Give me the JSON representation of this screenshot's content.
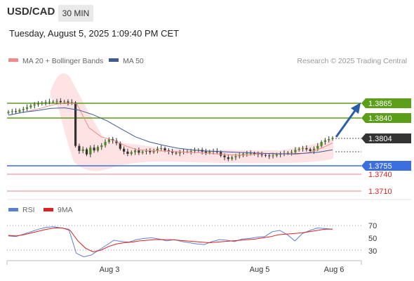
{
  "header": {
    "symbol": "USD/CAD",
    "timeframe": "30 MIN",
    "datetime": "Tuesday, August 5, 2025 1:09:40 PM CET"
  },
  "legend": {
    "ma20_label": "MA 20 + Bollinger Bands",
    "ma50_label": "MA 50",
    "credit": "Research © 2025 Trading Central"
  },
  "colors": {
    "resistance": "#5a9e1a",
    "support": "#3b6fe0",
    "minor_support": "#f08080",
    "current": "#333333",
    "ma20": "#f08a8a",
    "ma50": "#3d5a99",
    "rsi": "#5a7fd6",
    "rsi_ma": "#e02020",
    "arrow": "#2a5fa8"
  },
  "chart_data": [
    {
      "type": "candlestick",
      "title": "USD/CAD 30 MIN",
      "xlabel": "",
      "ylabel": "",
      "x_ticks": [
        "Aug 3",
        "Aug 5",
        "Aug 6"
      ],
      "ylim": [
        1.37,
        1.3895
      ],
      "levels": [
        {
          "label": "1.3865",
          "value": 1.3865,
          "kind": "resistance"
        },
        {
          "label": "1.3840",
          "value": 1.384,
          "kind": "resistance"
        },
        {
          "label": "1.3804",
          "value": 1.3804,
          "kind": "current"
        },
        {
          "label": "1.3755",
          "value": 1.3755,
          "kind": "support"
        },
        {
          "label": "1.3740",
          "value": 1.374,
          "kind": "minor_support"
        },
        {
          "label": "1.3710",
          "value": 1.371,
          "kind": "minor_support"
        }
      ],
      "close_approx": [
        1.385,
        1.3851,
        1.385,
        1.3853,
        1.3855,
        1.3858,
        1.3861,
        1.3863,
        1.3864,
        1.3866,
        1.3867,
        1.3868,
        1.3868,
        1.3869,
        1.3867,
        1.3868,
        1.3866,
        1.3867,
        1.379,
        1.3781,
        1.3784,
        1.3775,
        1.3787,
        1.3782,
        1.3788,
        1.3791,
        1.3797,
        1.3802,
        1.3799,
        1.3795,
        1.3785,
        1.378,
        1.3776,
        1.3779,
        1.3782,
        1.3778,
        1.378,
        1.3781,
        1.3779,
        1.3782,
        1.3785,
        1.3786,
        1.3782,
        1.378,
        1.3778,
        1.3777,
        1.3779,
        1.378,
        1.378,
        1.3781,
        1.3782,
        1.3783,
        1.378,
        1.3778,
        1.378,
        1.3781,
        1.3779,
        1.3773,
        1.377,
        1.3767,
        1.377,
        1.3772,
        1.3773,
        1.3776,
        1.3777,
        1.3777,
        1.3776,
        1.3775,
        1.3774,
        1.3773,
        1.3772,
        1.3773,
        1.3775,
        1.3776,
        1.3777,
        1.3778,
        1.3779,
        1.3783,
        1.3785,
        1.3786,
        1.3784,
        1.3781,
        1.3785,
        1.379,
        1.3797,
        1.38,
        1.3802,
        1.3804
      ],
      "ma20_approx": [
        1.3851,
        1.3856,
        1.3862,
        1.3866,
        1.3864,
        1.3822,
        1.3806,
        1.38,
        1.379,
        1.3783,
        1.3782,
        1.3781,
        1.378,
        1.3779,
        1.3778,
        1.3777,
        1.3775,
        1.3774,
        1.3774,
        1.3776,
        1.3777,
        1.3776,
        1.3775,
        1.3778,
        1.3785,
        1.3795
      ],
      "ma50_approx": [
        1.3844,
        1.3849,
        1.3852,
        1.3856,
        1.3857,
        1.3853,
        1.3845,
        1.3834,
        1.382,
        1.3806,
        1.3797,
        1.3791,
        1.3786,
        1.3783,
        1.3781,
        1.378,
        1.3779,
        1.3778,
        1.3777,
        1.3776,
        1.3776,
        1.3777,
        1.3779,
        1.3783
      ]
    },
    {
      "type": "line",
      "title": "RSI",
      "legend": [
        "RSI",
        "9MA"
      ],
      "ylim": [
        15,
        85
      ],
      "y_ticks": [
        "70",
        "50",
        "30"
      ],
      "series": [
        {
          "name": "RSI",
          "values": [
            53,
            52,
            56,
            60,
            64,
            67,
            68,
            66,
            64,
            25,
            19,
            22,
            30,
            38,
            46,
            44,
            43,
            47,
            49,
            50,
            48,
            45,
            47,
            44,
            42,
            40,
            39,
            44,
            47,
            46,
            44,
            48,
            49,
            51,
            52,
            60,
            62,
            55,
            45,
            57,
            62,
            66,
            65,
            64
          ]
        },
        {
          "name": "9MA",
          "values": [
            54,
            53,
            55,
            58,
            61,
            64,
            66,
            66,
            62,
            45,
            33,
            27,
            30,
            36,
            40,
            42,
            43,
            45,
            46,
            47,
            47,
            47,
            46,
            45,
            44,
            43,
            42,
            43,
            44,
            45,
            46,
            47,
            48,
            50,
            52,
            55,
            56,
            57,
            58,
            60,
            62,
            64,
            64
          ]
        }
      ]
    }
  ]
}
